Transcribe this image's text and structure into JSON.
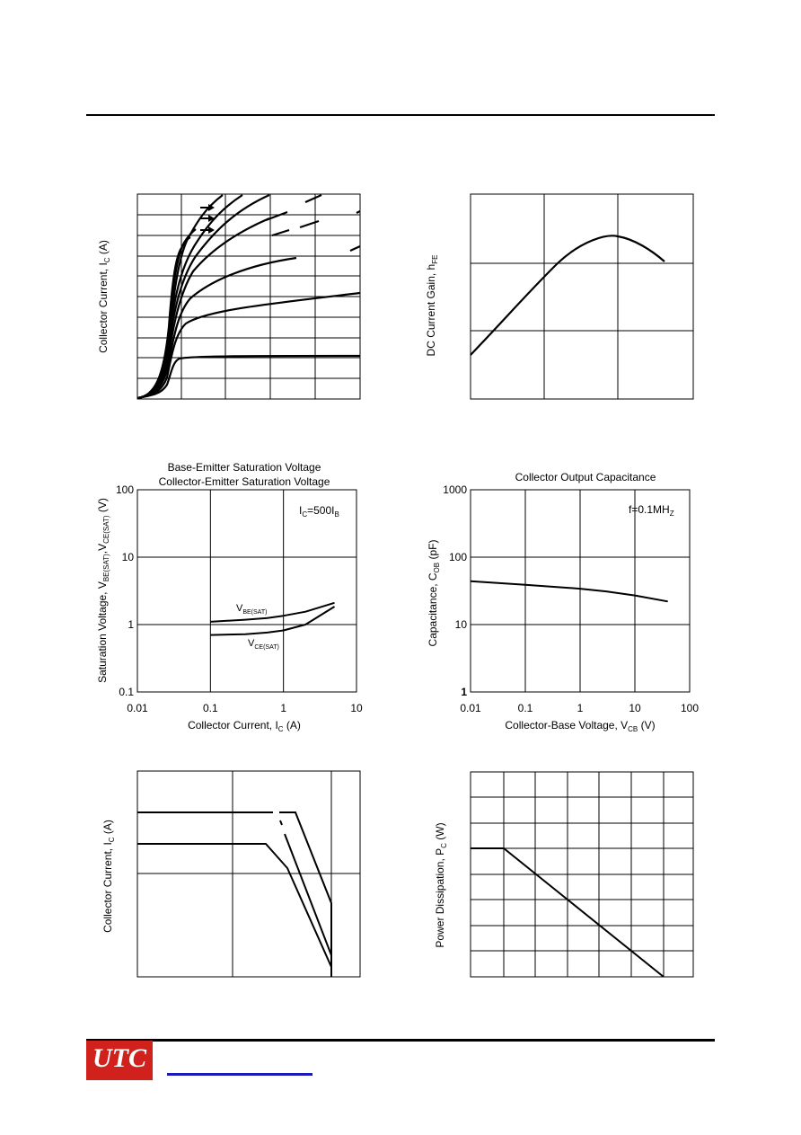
{
  "footer": {
    "logo_text": "UTC"
  },
  "chart_data": [
    {
      "id": "ic-vce",
      "type": "line",
      "ylabel": "Collector Current, I",
      "ylabel_sub": "C",
      "ylabel_unit": " (A)",
      "series_count": 9
    },
    {
      "id": "hfe-ic",
      "type": "line",
      "ylabel": "DC Current Gain, h",
      "ylabel_sub": "FE"
    },
    {
      "id": "sat-voltage",
      "type": "line",
      "title_lines": [
        "Base-Emitter Saturation Voltage",
        "Collector-Emitter Saturation Voltage"
      ],
      "xlabel": "Collector Current, I",
      "xlabel_sub": "C",
      "xlabel_unit": " (A)",
      "ylabel": "Saturation Voltage, V",
      "ylabel_sub1": "BE(SAT)",
      "ylabel_mid": ",V",
      "ylabel_sub2": "CE(SAT)",
      "ylabel_unit": " (V)",
      "x_scale": "log",
      "y_scale": "log",
      "xlim": [
        0.01,
        10
      ],
      "ylim": [
        0.1,
        100
      ],
      "x_ticks": [
        "0.01",
        "0.1",
        "1",
        "10"
      ],
      "y_ticks": [
        "0.1",
        "1",
        "10",
        "100"
      ],
      "annotation": {
        "main": "I",
        "sub1": "C",
        "mid": "=500I",
        "sub2": "B"
      },
      "series": [
        {
          "name_main": "V",
          "name_sub": "BE(SAT)",
          "x": [
            0.1,
            0.3,
            0.6,
            1,
            2,
            5
          ],
          "y": [
            1.1,
            1.18,
            1.25,
            1.35,
            1.55,
            2.1
          ]
        },
        {
          "name_main": "V",
          "name_sub": "CE(SAT)",
          "x": [
            0.1,
            0.3,
            0.6,
            1,
            2,
            5
          ],
          "y": [
            0.7,
            0.72,
            0.76,
            0.82,
            1.0,
            1.85
          ]
        }
      ]
    },
    {
      "id": "cob-vcb",
      "type": "line",
      "title": "Collector Output Capacitance",
      "xlabel": "Collector-Base Voltage, V",
      "xlabel_sub": "CB",
      "xlabel_unit": " (V)",
      "ylabel": "Capacitance, C",
      "ylabel_sub": "OB",
      "ylabel_unit": " (pF)",
      "x_scale": "log",
      "y_scale": "log",
      "xlim": [
        0.01,
        100
      ],
      "ylim": [
        1,
        1000
      ],
      "x_ticks": [
        "0.01",
        "0.1",
        "1",
        "10",
        "100"
      ],
      "y_ticks": [
        "1",
        "10",
        "100",
        "1000"
      ],
      "annotation": {
        "main": "f=0.1MH",
        "sub": "Z"
      },
      "series": [
        {
          "x": [
            0.01,
            0.1,
            1,
            3,
            10,
            40
          ],
          "y": [
            44,
            39,
            34,
            31,
            27,
            22
          ]
        }
      ]
    },
    {
      "id": "soa",
      "type": "line",
      "ylabel": "Collector Current, I",
      "ylabel_sub": "C",
      "ylabel_unit": " (A)"
    },
    {
      "id": "pc-derating",
      "type": "line",
      "ylabel": "Power Dissipation, P",
      "ylabel_sub": "C",
      "ylabel_unit": " (W)"
    }
  ]
}
